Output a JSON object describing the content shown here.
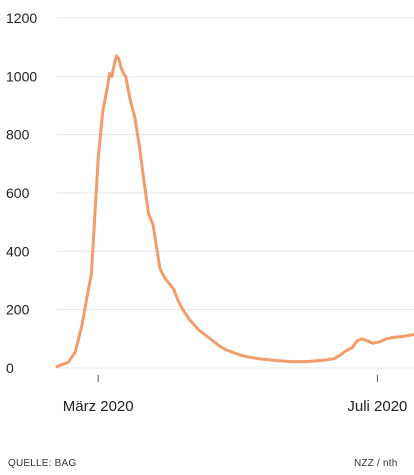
{
  "chart_data": {
    "type": "line",
    "title": "",
    "xlabel": "",
    "ylabel": "",
    "ylim": [
      0,
      1200
    ],
    "yticks": [
      0,
      200,
      400,
      600,
      800,
      1000,
      1200
    ],
    "ytick_labels": [
      "0",
      "200",
      "400",
      "600",
      "800",
      "1000",
      "1200"
    ],
    "xlim": [
      "2020-02-26",
      "2020-07-31"
    ],
    "xticks": [
      {
        "date": "2020-03-15",
        "label": "März 2020"
      },
      {
        "date": "2020-07-15",
        "label": "Juli 2020"
      }
    ],
    "grid": {
      "horizontal": true,
      "vertical": false
    },
    "line_color": "#f39c6b",
    "series": [
      {
        "x": [
          "2020-02-26",
          "2020-03-02",
          "2020-03-05",
          "2020-03-08",
          "2020-03-10",
          "2020-03-12",
          "2020-03-13",
          "2020-03-15",
          "2020-03-17",
          "2020-03-19",
          "2020-03-20",
          "2020-03-21",
          "2020-03-22",
          "2020-03-23",
          "2020-03-24",
          "2020-03-25",
          "2020-03-26",
          "2020-03-27",
          "2020-03-28",
          "2020-03-29",
          "2020-03-31",
          "2020-04-02",
          "2020-04-04",
          "2020-04-06",
          "2020-04-08",
          "2020-04-10",
          "2020-04-11",
          "2020-04-13",
          "2020-04-15",
          "2020-04-17",
          "2020-04-19",
          "2020-04-21",
          "2020-04-24",
          "2020-04-28",
          "2020-05-03",
          "2020-05-07",
          "2020-05-10",
          "2020-05-14",
          "2020-05-18",
          "2020-05-24",
          "2020-05-31",
          "2020-06-07",
          "2020-06-14",
          "2020-06-21",
          "2020-06-26",
          "2020-06-29",
          "2020-07-01",
          "2020-07-04",
          "2020-07-06",
          "2020-07-08",
          "2020-07-10",
          "2020-07-13",
          "2020-07-16",
          "2020-07-19",
          "2020-07-22",
          "2020-07-26",
          "2020-07-31"
        ],
        "y": [
          5,
          20,
          55,
          150,
          240,
          320,
          450,
          720,
          880,
          960,
          1010,
          1000,
          1040,
          1070,
          1060,
          1030,
          1010,
          1000,
          960,
          920,
          860,
          760,
          640,
          530,
          490,
          390,
          340,
          310,
          290,
          270,
          230,
          200,
          165,
          130,
          100,
          75,
          62,
          50,
          40,
          32,
          26,
          22,
          22,
          26,
          32,
          45,
          58,
          70,
          92,
          100,
          95,
          85,
          90,
          100,
          105,
          108,
          115
        ]
      }
    ],
    "source": "QUELLE: BAG",
    "credit": "NZZ / nth"
  }
}
